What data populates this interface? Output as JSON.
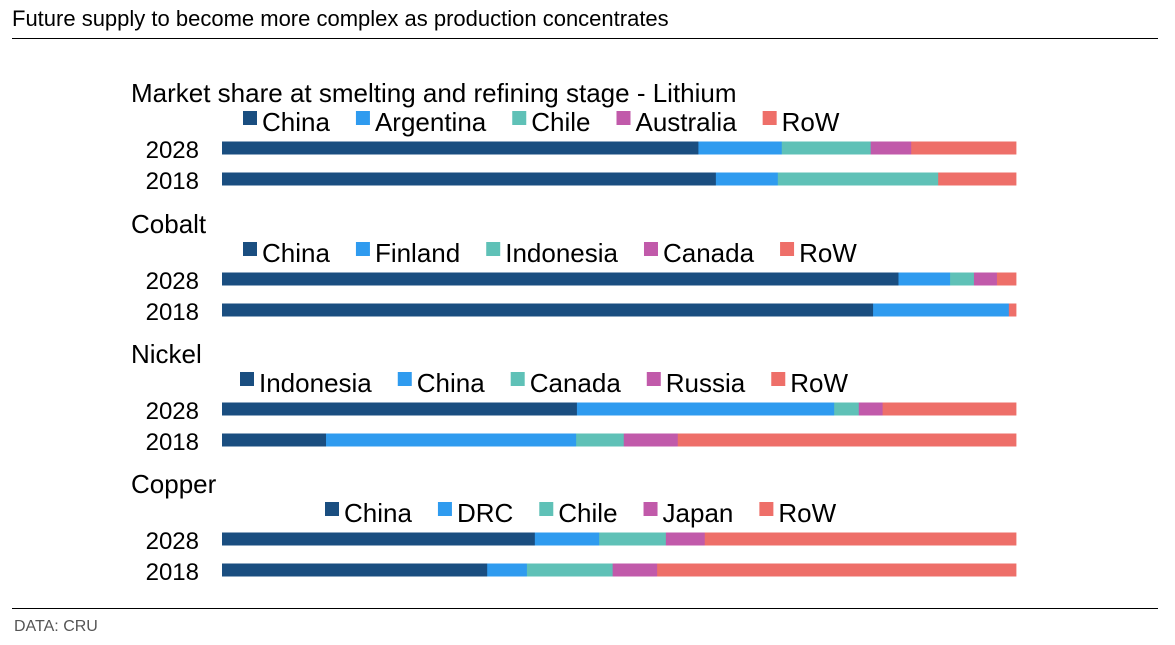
{
  "header": {
    "title": "Future supply to become more complex as production concentrates",
    "source": "DATA: CRU"
  },
  "chart_data": [
    {
      "type": "bar",
      "orientation": "horizontal",
      "stacked": true,
      "title": "Market share at smelting and refining stage - Lithium",
      "categories": [
        "2028",
        "2018"
      ],
      "xlim": [
        0,
        100
      ],
      "grid": false,
      "legend": "top",
      "series": [
        {
          "name": "China",
          "values": [
            60,
            62.2
          ]
        },
        {
          "name": "Argentina",
          "values": [
            10.5,
            7.8
          ]
        },
        {
          "name": "Chile",
          "values": [
            11.2,
            20.2
          ]
        },
        {
          "name": "Australia",
          "values": [
            5.1,
            0
          ]
        },
        {
          "name": "RoW",
          "values": [
            13.2,
            9.8
          ]
        }
      ]
    },
    {
      "type": "bar",
      "orientation": "horizontal",
      "stacked": true,
      "title": "Cobalt",
      "categories": [
        "2028",
        "2018"
      ],
      "xlim": [
        0,
        100
      ],
      "grid": false,
      "legend": "top",
      "series": [
        {
          "name": "China",
          "values": [
            85.2,
            82
          ]
        },
        {
          "name": "Finland",
          "values": [
            6.5,
            17.1
          ]
        },
        {
          "name": "Indonesia",
          "values": [
            3,
            0
          ]
        },
        {
          "name": "Canada",
          "values": [
            2.9,
            0
          ]
        },
        {
          "name": "RoW",
          "values": [
            2.4,
            0.9
          ]
        }
      ]
    },
    {
      "type": "bar",
      "orientation": "horizontal",
      "stacked": true,
      "title": "Nickel",
      "categories": [
        "2028",
        "2018"
      ],
      "xlim": [
        0,
        100
      ],
      "grid": false,
      "legend": "top",
      "series": [
        {
          "name": "Indonesia",
          "values": [
            44.7,
            13.1
          ]
        },
        {
          "name": "China",
          "values": [
            32.4,
            31.5
          ]
        },
        {
          "name": "Canada",
          "values": [
            3.1,
            6
          ]
        },
        {
          "name": "Russia",
          "values": [
            3,
            6.8
          ]
        },
        {
          "name": "RoW",
          "values": [
            16.8,
            42.6
          ]
        }
      ]
    },
    {
      "type": "bar",
      "orientation": "horizontal",
      "stacked": true,
      "title": "Copper",
      "categories": [
        "2028",
        "2018"
      ],
      "xlim": [
        0,
        100
      ],
      "grid": false,
      "legend": "top",
      "series": [
        {
          "name": "China",
          "values": [
            39.4,
            33.4
          ]
        },
        {
          "name": "DRC",
          "values": [
            8.1,
            5
          ]
        },
        {
          "name": "Chile",
          "values": [
            8.4,
            10.8
          ]
        },
        {
          "name": "Japan",
          "values": [
            4.9,
            5.6
          ]
        },
        {
          "name": "RoW",
          "values": [
            39.2,
            45.2
          ]
        }
      ]
    }
  ],
  "colors": [
    "#1a4e80",
    "#2f9bef",
    "#5fc1b7",
    "#c15aaa",
    "#ee6f69"
  ]
}
